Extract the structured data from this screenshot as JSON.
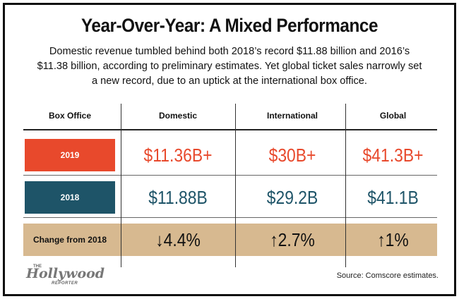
{
  "title": "Year-Over-Year: A Mixed Performance",
  "subtitle": "Domestic revenue tumbled behind both 2018’s record $11.88 billion and 2016’s $11.38 billion, according to preliminary estimates. Yet global ticket sales narrowly set a new record, due to an uptick at the international box office.",
  "source": "Source: Comscore estimates.",
  "logo": {
    "the": "THE",
    "main": "Hollywood",
    "sub": "REPORTER"
  },
  "colors": {
    "y2019": "#e8492c",
    "y2018": "#1e5468",
    "change_band": "#d7b990"
  },
  "chart_data": {
    "type": "table",
    "columns": [
      "Box Office",
      "Domestic",
      "International",
      "Global"
    ],
    "rows": [
      {
        "label": "2019",
        "cells": [
          "$11.36B+",
          "$30B+",
          "$41.3B+"
        ],
        "values": [
          11.36,
          30,
          41.3
        ]
      },
      {
        "label": "2018",
        "cells": [
          "$11.88B",
          "$29.2B",
          "$41.1B"
        ],
        "values": [
          11.88,
          29.2,
          41.1
        ]
      },
      {
        "label": "Change from 2018",
        "cells": [
          "↓4.4%",
          "↑2.7%",
          "↑1%"
        ],
        "values": [
          -4.4,
          2.7,
          1
        ]
      }
    ]
  }
}
